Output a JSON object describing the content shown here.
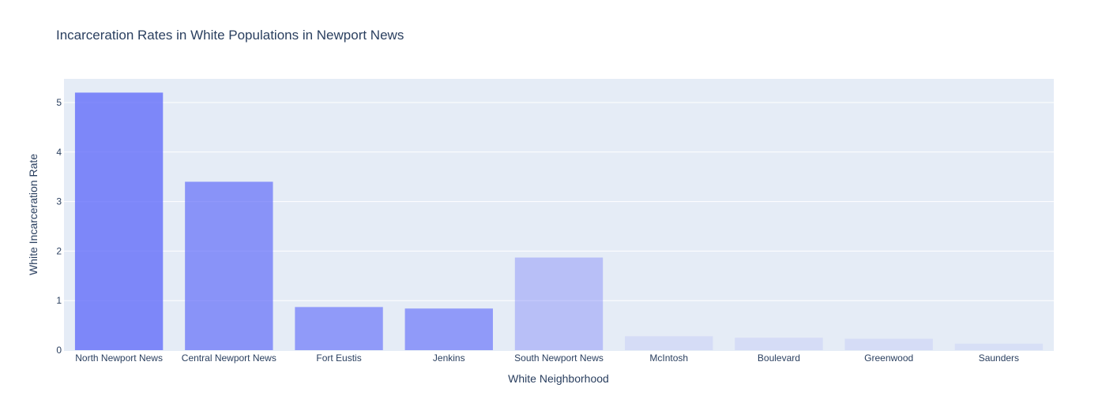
{
  "chart_data": {
    "type": "bar",
    "title": "Incarceration Rates in White Populations in Newport News",
    "xlabel": "White Neighborhood",
    "ylabel": "White Incarceration Rate",
    "ylim": [
      0,
      5.5
    ],
    "yticks": [
      0,
      1,
      2,
      3,
      4,
      5
    ],
    "grid": true,
    "legend": "none",
    "colors": {
      "plot_bg": "#e5ecf6",
      "grid": "#ffffff",
      "bar": "#636efa",
      "text": "#2a3f5f"
    },
    "categories": [
      "North Newport News",
      "Central Newport News",
      "Fort Eustis",
      "Jenkins",
      "South Newport News",
      "McIntosh",
      "Boulevard",
      "Greenwood",
      "Saunders"
    ],
    "values": [
      5.2,
      3.4,
      0.87,
      0.84,
      1.87,
      0.28,
      0.25,
      0.23,
      0.13
    ],
    "opacity": [
      0.8,
      0.7,
      0.65,
      0.65,
      0.35,
      0.12,
      0.12,
      0.12,
      0.1
    ]
  }
}
